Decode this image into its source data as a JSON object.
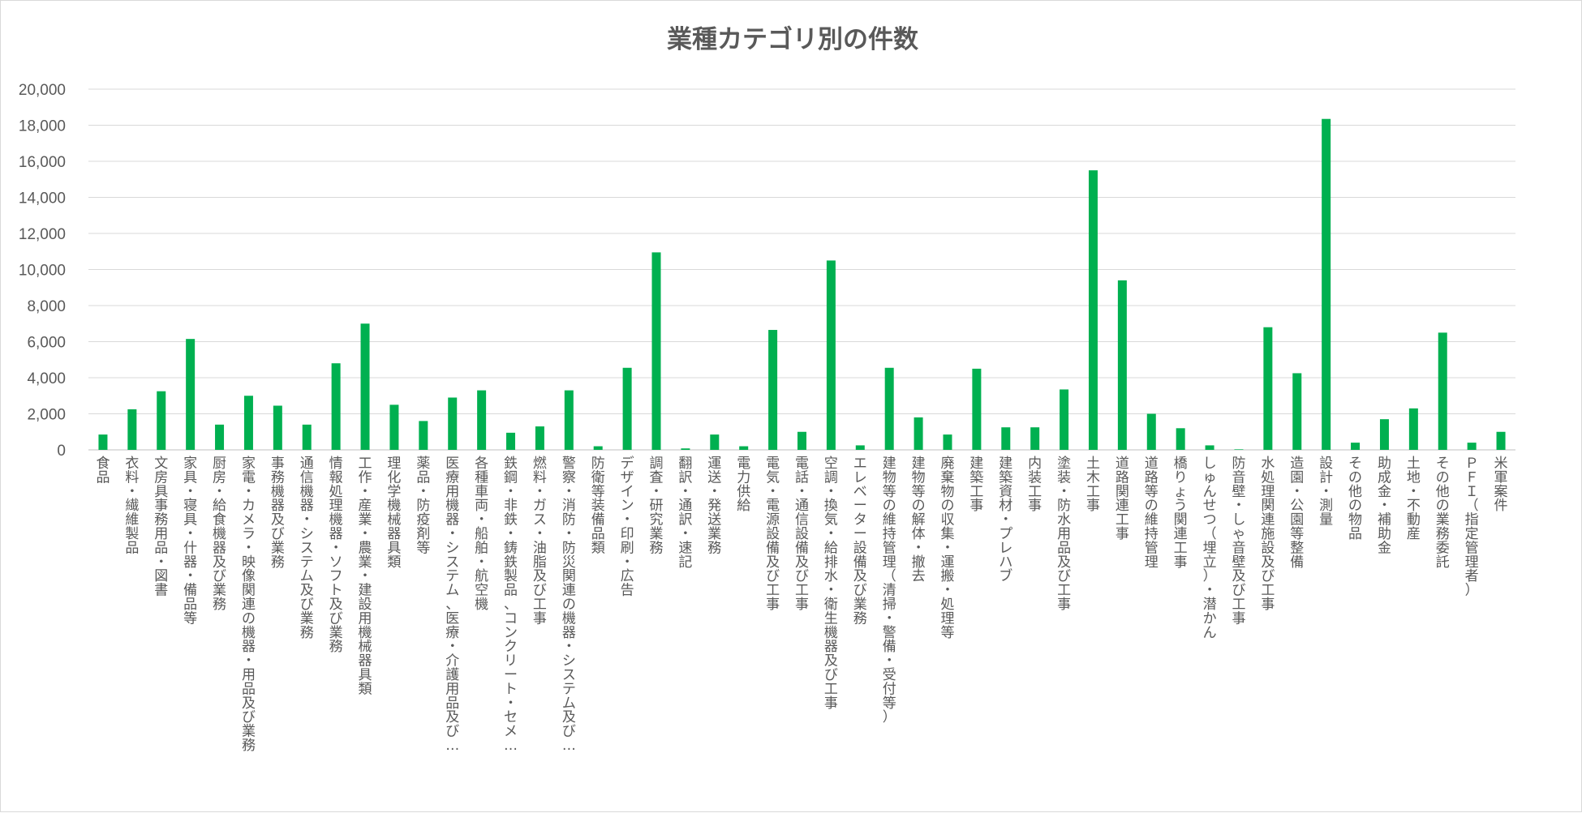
{
  "chart_data": {
    "type": "bar",
    "title": "業種カテゴリ別の件数",
    "xlabel": "",
    "ylabel": "",
    "ylim": [
      0,
      20000
    ],
    "yticks": [
      0,
      2000,
      4000,
      6000,
      8000,
      10000,
      12000,
      14000,
      16000,
      18000,
      20000
    ],
    "ytick_labels": [
      "0",
      "2,000",
      "4,000",
      "6,000",
      "8,000",
      "10,000",
      "12,000",
      "14,000",
      "16,000",
      "18,000",
      "20,000"
    ],
    "grid": true,
    "legend": "none",
    "bar_color": "#00b050",
    "categories": [
      "食品",
      "衣料・繊維製品",
      "文房具事務用品・図書",
      "家具・寝具・什器・備品等",
      "厨房・給食機器及び業務",
      "家電・カメラ・映像関連の機器・用品及び業務",
      "事務機器及び業務",
      "通信機器・システム及び業務",
      "情報処理機器・ソフト及び業務",
      "工作・産業・農業・建設用機械器具類",
      "理化学機械器具類",
      "薬品・防疫剤等",
      "医療用機器・システム、医療・介護用品及び…",
      "各種車両・船舶・航空機",
      "鉄鋼・非鉄・鋳鉄製品、コンクリート・セメ…",
      "燃料・ガス・油脂及び工事",
      "警察・消防・防災関連の機器・システム及び…",
      "防衛等装備品類",
      "デザイン・印刷・広告",
      "調査・研究業務",
      "翻訳・通訳・速記",
      "運送・発送業務",
      "電力供給",
      "電気・電源設備及び工事",
      "電話・通信設備及び工事",
      "空調・換気・給排水・衛生機器及び工事",
      "エレベーター設備及び業務",
      "建物等の維持管理（清掃・警備・受付等）",
      "建物等の解体・撤去",
      "廃棄物の収集・運搬・処理等",
      "建築工事",
      "建築資材・プレハブ",
      "内装工事",
      "塗装・防水用品及び工事",
      "土木工事",
      "道路関連工事",
      "道路等の維持管理",
      "橋りょう関連工事",
      "しゅんせつ（埋立）・潜かん",
      "防音壁・しゃ音壁及び工事",
      "水処理関連施設及び工事",
      "造園・公園等整備",
      "設計・測量",
      "その他の物品",
      "助成金・補助金",
      "土地・不動産",
      "その他の業務委託",
      "ＰＦＩ（指定管理者）",
      "米軍案件"
    ],
    "values": [
      850,
      2250,
      3250,
      6150,
      1400,
      3000,
      2450,
      1400,
      4800,
      7000,
      2500,
      1600,
      2900,
      3300,
      950,
      1300,
      3300,
      200,
      4550,
      10950,
      80,
      850,
      200,
      6650,
      1000,
      10500,
      250,
      4550,
      1800,
      850,
      4500,
      1250,
      1250,
      3350,
      15500,
      9400,
      2000,
      1200,
      250,
      30,
      6800,
      4250,
      18350,
      400,
      1700,
      2300,
      6500,
      400,
      1000
    ]
  }
}
